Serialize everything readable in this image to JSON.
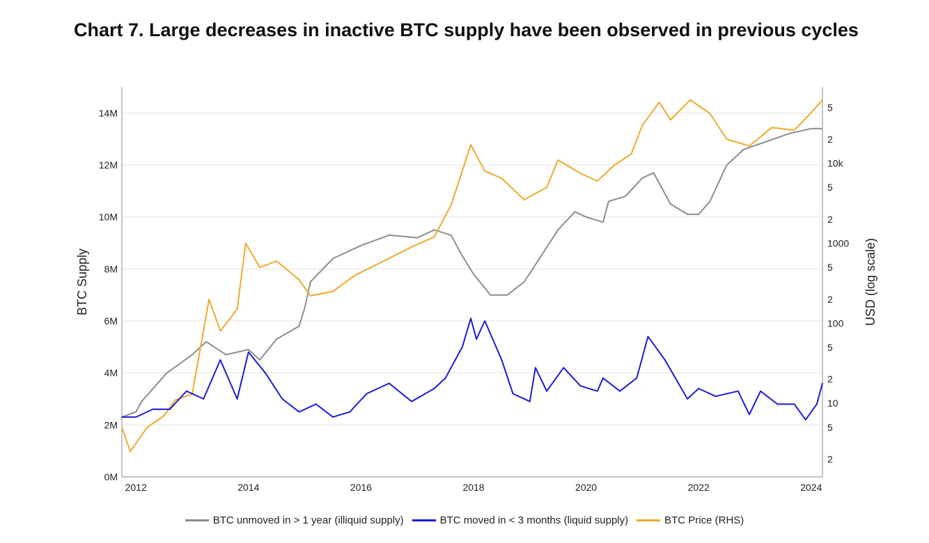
{
  "chart_data": {
    "type": "line",
    "title": "Chart 7. Large decreases in inactive BTC supply have been observed in previous cycles",
    "xlabel": "",
    "ylabel": "BTC Supply",
    "y2label": "USD (log scale)",
    "xlim": [
      2011.75,
      2024.2
    ],
    "ylim": [
      0,
      15
    ],
    "y2lim": [
      1.2,
      90000
    ],
    "y2scale": "log",
    "grid": true,
    "legend": "bottom",
    "x_ticks": [
      "2012",
      "2014",
      "2016",
      "2018",
      "2020",
      "2022",
      "2024"
    ],
    "y_ticks": [
      "0M",
      "2M",
      "4M",
      "6M",
      "8M",
      "10M",
      "12M",
      "14M"
    ],
    "y2_ticks": [
      "2",
      "5",
      "10",
      "2",
      "5",
      "100",
      "2",
      "5",
      "1000",
      "2",
      "5",
      "10k",
      "2",
      "5"
    ],
    "series": [
      {
        "name": "BTC unmoved in > 1 year (illiquid supply)",
        "axis": "left",
        "unit": "M",
        "color": "#8c8c8c",
        "x": [
          2011.75,
          2012.0,
          2012.1,
          2012.55,
          2013.0,
          2013.25,
          2013.6,
          2014.0,
          2014.2,
          2014.5,
          2014.9,
          2015.0,
          2015.1,
          2015.5,
          2016.0,
          2016.5,
          2017.0,
          2017.3,
          2017.6,
          2017.8,
          2018.0,
          2018.3,
          2018.6,
          2018.9,
          2019.2,
          2019.5,
          2019.8,
          2020.0,
          2020.3,
          2020.4,
          2020.7,
          2021.0,
          2021.2,
          2021.5,
          2021.8,
          2022.0,
          2022.2,
          2022.5,
          2022.8,
          2023.2,
          2023.6,
          2024.0,
          2024.2
        ],
        "y": [
          2.3,
          2.5,
          2.9,
          4.0,
          4.7,
          5.2,
          4.7,
          4.9,
          4.5,
          5.3,
          5.8,
          6.5,
          7.5,
          8.4,
          8.9,
          9.3,
          9.2,
          9.5,
          9.3,
          8.5,
          7.8,
          7.0,
          7.0,
          7.5,
          8.5,
          9.5,
          10.2,
          10.0,
          9.8,
          10.6,
          10.8,
          11.5,
          11.7,
          10.5,
          10.1,
          10.1,
          10.6,
          12.0,
          12.6,
          12.9,
          13.2,
          13.4,
          13.4
        ]
      },
      {
        "name": "BTC moved in < 3 months (liquid supply)",
        "axis": "left",
        "unit": "M",
        "color": "#1a1adb",
        "x": [
          2011.75,
          2012.0,
          2012.3,
          2012.6,
          2012.9,
          2013.2,
          2013.5,
          2013.8,
          2014.0,
          2014.3,
          2014.6,
          2014.9,
          2015.2,
          2015.5,
          2015.8,
          2016.1,
          2016.5,
          2016.9,
          2017.3,
          2017.5,
          2017.8,
          2017.95,
          2018.05,
          2018.2,
          2018.5,
          2018.7,
          2019.0,
          2019.1,
          2019.3,
          2019.6,
          2019.9,
          2020.2,
          2020.3,
          2020.6,
          2020.9,
          2021.1,
          2021.4,
          2021.8,
          2022.0,
          2022.3,
          2022.7,
          2022.9,
          2023.1,
          2023.4,
          2023.7,
          2023.9,
          2024.1,
          2024.2
        ],
        "y": [
          2.3,
          2.3,
          2.6,
          2.6,
          3.3,
          3.0,
          4.5,
          3.0,
          4.8,
          4.0,
          3.0,
          2.5,
          2.8,
          2.3,
          2.5,
          3.2,
          3.6,
          2.9,
          3.4,
          3.8,
          5.0,
          6.1,
          5.3,
          6.0,
          4.5,
          3.2,
          2.9,
          4.2,
          3.3,
          4.2,
          3.5,
          3.3,
          3.8,
          3.3,
          3.8,
          5.4,
          4.5,
          3.0,
          3.4,
          3.1,
          3.3,
          2.4,
          3.3,
          2.8,
          2.8,
          2.2,
          2.8,
          3.6
        ]
      },
      {
        "name": "BTC Price (RHS)",
        "axis": "right",
        "unit": "USD",
        "color": "#f0a92a",
        "x": [
          2011.75,
          2011.9,
          2012.2,
          2012.5,
          2012.7,
          2013.0,
          2013.3,
          2013.5,
          2013.8,
          2013.95,
          2014.2,
          2014.5,
          2014.9,
          2015.1,
          2015.5,
          2015.9,
          2016.5,
          2016.9,
          2017.3,
          2017.6,
          2017.95,
          2018.2,
          2018.5,
          2018.9,
          2019.3,
          2019.5,
          2019.9,
          2020.2,
          2020.5,
          2020.8,
          2021.0,
          2021.3,
          2021.5,
          2021.85,
          2022.2,
          2022.5,
          2022.9,
          2023.3,
          2023.7,
          2024.0,
          2024.2
        ],
        "y": [
          5,
          2.5,
          5,
          7,
          11,
          13,
          200,
          80,
          150,
          1000,
          500,
          600,
          350,
          220,
          250,
          400,
          650,
          900,
          1200,
          3000,
          17000,
          8000,
          6500,
          3500,
          5000,
          11000,
          7500,
          6000,
          9500,
          13000,
          30000,
          58000,
          35000,
          62000,
          42000,
          20000,
          16500,
          28000,
          26000,
          43000,
          62000
        ]
      }
    ]
  }
}
